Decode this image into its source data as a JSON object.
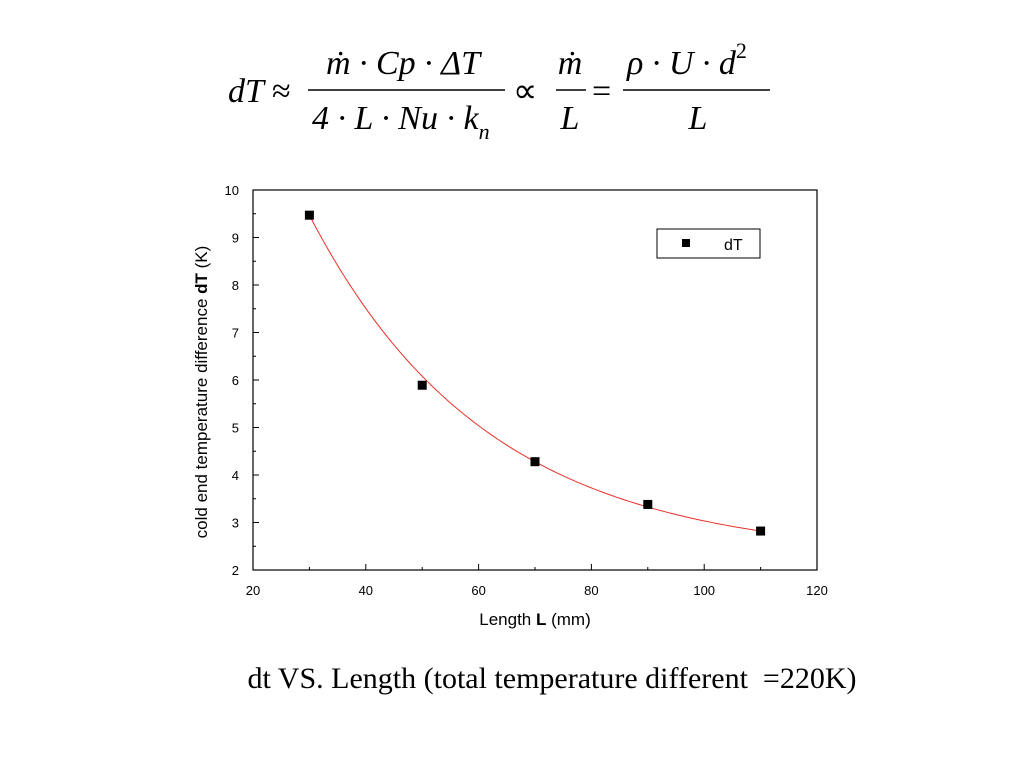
{
  "formula": {
    "lhs": "dT",
    "approx": "≈",
    "frac1_numerator": "ṁ · Cp · ΔT",
    "frac1_denominator": "4 · L · Nu · k",
    "frac1_denominator_subscript": "n",
    "proportional": "∝",
    "frac2_numerator": "ṁ",
    "frac2_denominator": "L",
    "equals": "=",
    "frac3_numerator": "ρ · U · d",
    "frac3_numerator_superscript": "2",
    "frac3_denominator": "L"
  },
  "chart_data": {
    "type": "scatter",
    "x": [
      30,
      50,
      70,
      90,
      110
    ],
    "series": [
      {
        "name": "dT",
        "values": [
          9.47,
          5.89,
          4.28,
          3.38,
          2.82
        ],
        "marker": "square",
        "color": "#000000"
      }
    ],
    "fit": {
      "type": "exponential-decay",
      "color": "#e8312a",
      "x_range": [
        30,
        110
      ]
    },
    "xlabel_prefix": "Length ",
    "xlabel_bold": "L",
    "xlabel_suffix": " (mm)",
    "ylabel_prefix": "cold end temperature difference ",
    "ylabel_bold": "dT",
    "ylabel_suffix": " (K)",
    "xlim": [
      20,
      120
    ],
    "ylim": [
      2,
      10
    ],
    "xticks": [
      20,
      40,
      60,
      80,
      100,
      120
    ],
    "yticks": [
      2,
      3,
      4,
      5,
      6,
      7,
      8,
      9,
      10
    ],
    "legend": {
      "position": "top-right",
      "entries": [
        "dT"
      ]
    },
    "grid": false
  },
  "caption": "dt VS. Length (total temperature different  =220K)"
}
